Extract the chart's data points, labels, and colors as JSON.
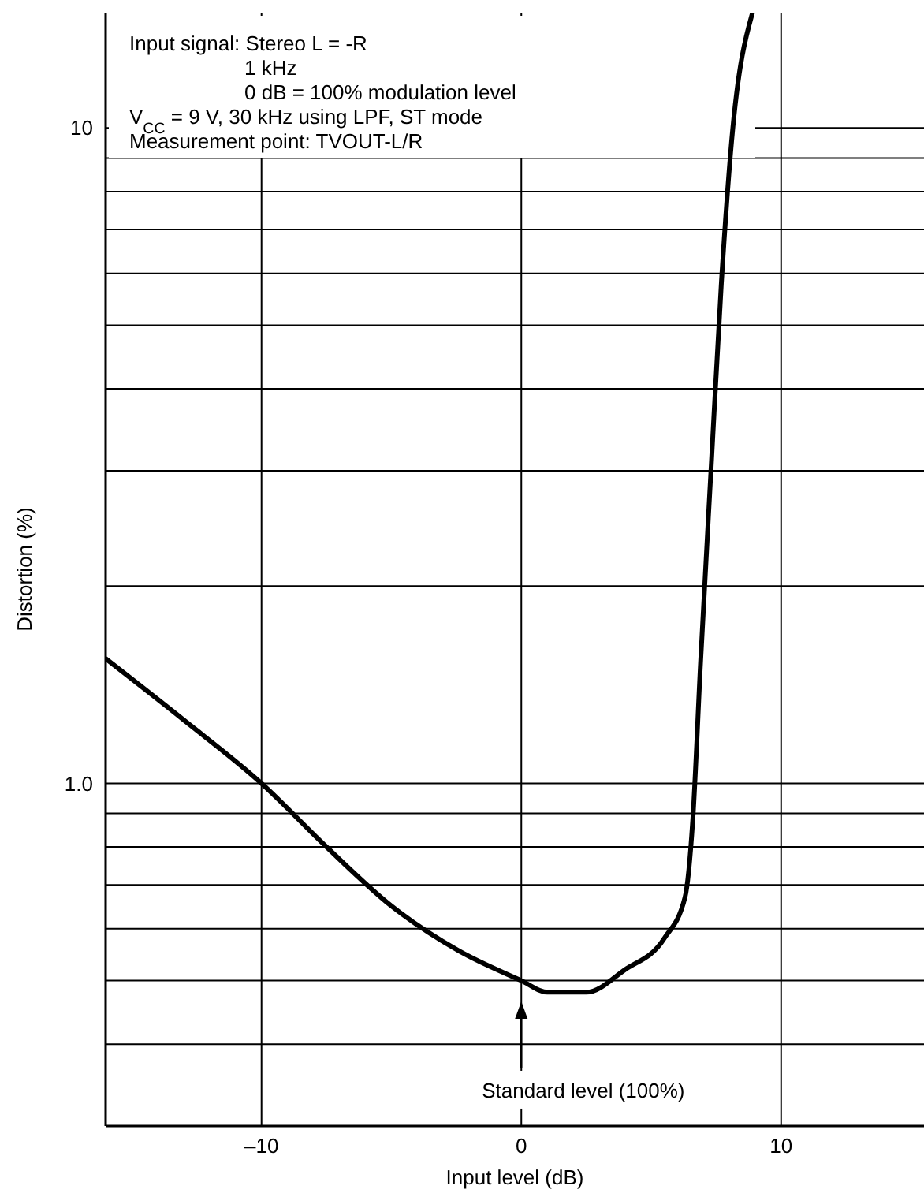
{
  "chart_data": {
    "type": "line",
    "xlabel": "Input level (dB)",
    "ylabel": "Distortion (%)",
    "x": [
      -16,
      -13,
      -10,
      -7.5,
      -5,
      -2.4,
      0,
      1,
      2.5,
      4,
      5.5,
      6.3,
      6.6,
      6.9,
      7.3,
      7.7,
      8.1,
      8.9
    ],
    "series": [
      {
        "color": "#000000",
        "values": [
          1.55,
          1.25,
          1.0,
          0.8,
          0.65,
          0.555,
          0.5,
          0.48,
          0.48,
          0.52,
          0.58,
          0.67,
          0.88,
          1.53,
          3.0,
          5.8,
          9.6,
          15
        ]
      }
    ],
    "log": "y",
    "xlim": [
      -16,
      15.5
    ],
    "ylim": [
      0.3,
      15
    ],
    "xticks": [
      {
        "value": -10,
        "label": "–10"
      },
      0,
      10
    ],
    "yticks": [
      {
        "value": 0.4,
        "label": null
      },
      {
        "value": 0.5,
        "label": null
      },
      {
        "value": 0.6,
        "label": null
      },
      {
        "value": 0.7,
        "label": null
      },
      {
        "value": 0.8,
        "label": null
      },
      {
        "value": 0.9,
        "label": null
      },
      {
        "value": 1,
        "label": "1.0"
      },
      {
        "value": 2,
        "label": null
      },
      {
        "value": 3,
        "label": null
      },
      {
        "value": 4,
        "label": null
      },
      {
        "value": 5,
        "label": null
      },
      {
        "value": 6,
        "label": null
      },
      {
        "value": 7,
        "label": null
      },
      {
        "value": 8,
        "label": null
      },
      {
        "value": 9,
        "label": null
      },
      10
    ],
    "grid": true,
    "line_style": "solid",
    "annotations": [
      "Input signal:  Stereo L = -R",
      "1 kHz",
      "0 dB = 100% modulation level",
      "V$_{CC}$ = 9 V, 30 kHz using LPF, ST mode",
      "Measurement point: TVOUT-L/R",
      "Standard level (100%)"
    ]
  }
}
